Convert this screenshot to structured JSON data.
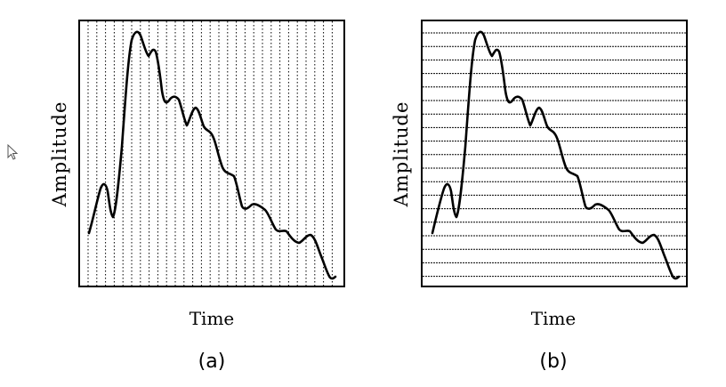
{
  "panels": [
    {
      "id": "a",
      "ylabel": "Amplitude",
      "xlabel": "Time",
      "caption": "(a)",
      "grid": "vertical-dotted"
    },
    {
      "id": "b",
      "ylabel": "Amplitude",
      "xlabel": "Time",
      "caption": "(b)",
      "grid": "horizontal-dotted"
    }
  ],
  "cursor": {
    "icon": "mouse-pointer-icon"
  }
}
